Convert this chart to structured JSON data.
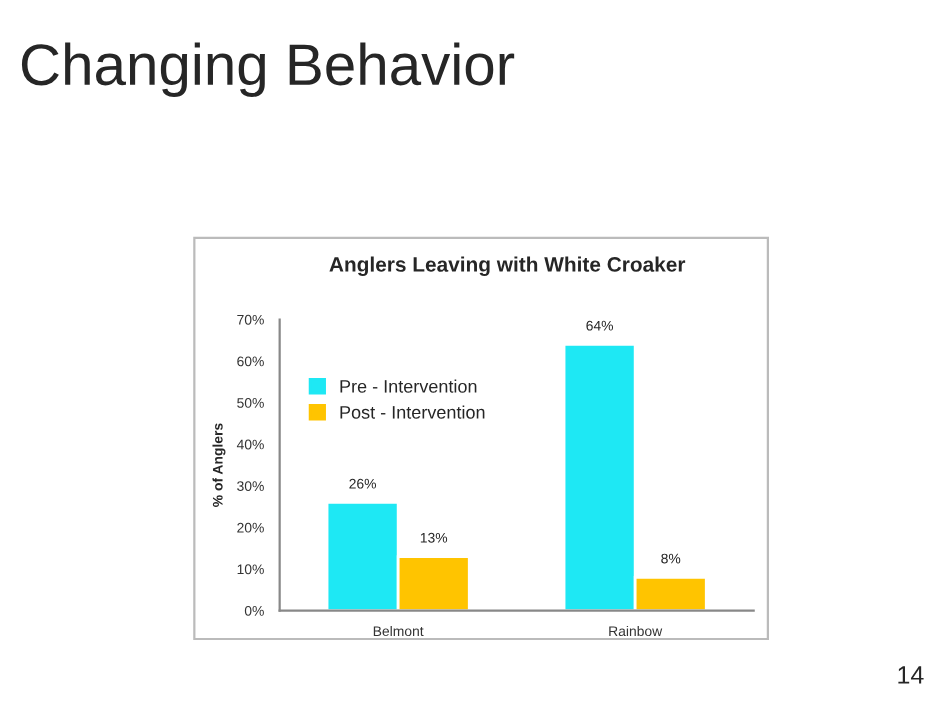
{
  "chart_data": {
    "type": "bar",
    "title": "Changing Behavior",
    "subtitle": "Anglers Leaving with White Croaker",
    "ylabel": "% of Anglers",
    "categories": [
      "Belmont",
      "Rainbow"
    ],
    "series": [
      {
        "name": "Pre - Intervention",
        "color": "#1ee8f4",
        "values": [
          26,
          64
        ],
        "value_labels": [
          "26%",
          "64%"
        ]
      },
      {
        "name": "Post - Intervention",
        "color": "#ffc400",
        "values": [
          13,
          8
        ],
        "value_labels": [
          "13%",
          "8%"
        ]
      }
    ],
    "ylim": [
      0,
      70
    ],
    "yticks": [
      {
        "value": 0,
        "label": "0%"
      },
      {
        "value": 10,
        "label": "10%"
      },
      {
        "value": 20,
        "label": "20%"
      },
      {
        "value": 30,
        "label": "30%"
      },
      {
        "value": 40,
        "label": "40%"
      },
      {
        "value": 50,
        "label": "50%"
      },
      {
        "value": 60,
        "label": "60%"
      },
      {
        "value": 70,
        "label": "70%"
      }
    ],
    "grid": false,
    "legend": "top left",
    "annotations": [
      "14"
    ]
  }
}
